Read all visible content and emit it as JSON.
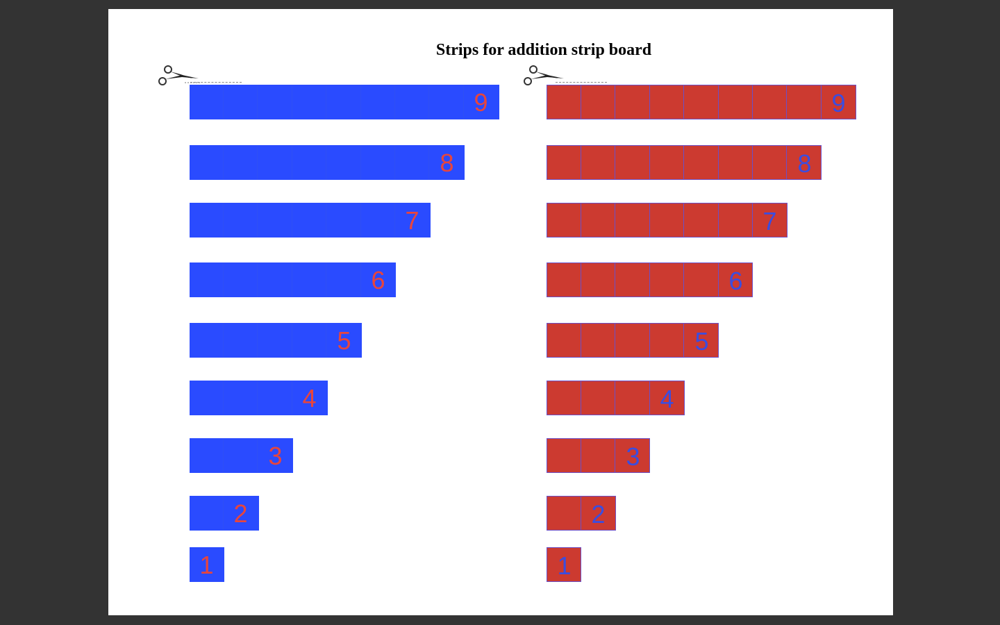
{
  "page": {
    "title": "Strips for addition strip board"
  },
  "colors": {
    "background": "#333333",
    "sheet": "#ffffff",
    "blue_strip": "#2a4bff",
    "blue_strip_number": "#e8453c",
    "red_strip": "#cc3a30",
    "red_strip_number": "#3a4de0",
    "red_strip_grid": "#6a4fc8"
  },
  "icons": {
    "cut_marker": "scissors-icon"
  },
  "blue_strips": [
    {
      "label": "9",
      "length": 9
    },
    {
      "label": "8",
      "length": 8
    },
    {
      "label": "7",
      "length": 7
    },
    {
      "label": "6",
      "length": 6
    },
    {
      "label": "5",
      "length": 5
    },
    {
      "label": "4",
      "length": 4
    },
    {
      "label": "3",
      "length": 3
    },
    {
      "label": "2",
      "length": 2
    },
    {
      "label": "1",
      "length": 1
    }
  ],
  "red_strips": [
    {
      "label": "9",
      "length": 9
    },
    {
      "label": "8",
      "length": 8
    },
    {
      "label": "7",
      "length": 7
    },
    {
      "label": "6",
      "length": 6
    },
    {
      "label": "5",
      "length": 5
    },
    {
      "label": "4",
      "length": 4
    },
    {
      "label": "3",
      "length": 3
    },
    {
      "label": "2",
      "length": 2
    },
    {
      "label": "1",
      "length": 1
    }
  ]
}
